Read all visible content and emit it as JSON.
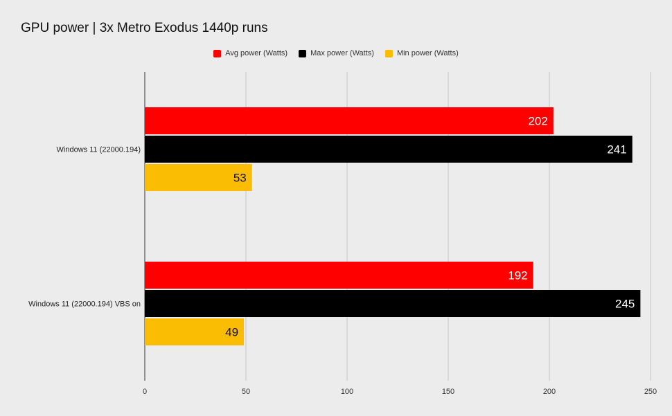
{
  "chart_data": {
    "type": "bar",
    "orientation": "horizontal",
    "title": "GPU power | 3x Metro Exodus 1440p runs",
    "xlabel": "",
    "ylabel": "",
    "categories": [
      "Windows 11 (22000.194)",
      "Windows 11 (22000.194) VBS on"
    ],
    "series": [
      {
        "name": "Avg power (Watts)",
        "values": [
          202,
          192
        ],
        "color": "#ff0000",
        "label_color": "#ffffff"
      },
      {
        "name": "Max power (Watts)",
        "values": [
          241,
          245
        ],
        "color": "#000000",
        "label_color": "#ffffff"
      },
      {
        "name": "Min power (Watts)",
        "values": [
          53,
          49
        ],
        "color": "#fbbc04",
        "label_color": "#111111"
      }
    ],
    "xlim": [
      0,
      250
    ],
    "xticks": [
      0,
      50,
      100,
      150,
      200,
      250
    ],
    "grid": true,
    "legend_position": "top-center"
  }
}
